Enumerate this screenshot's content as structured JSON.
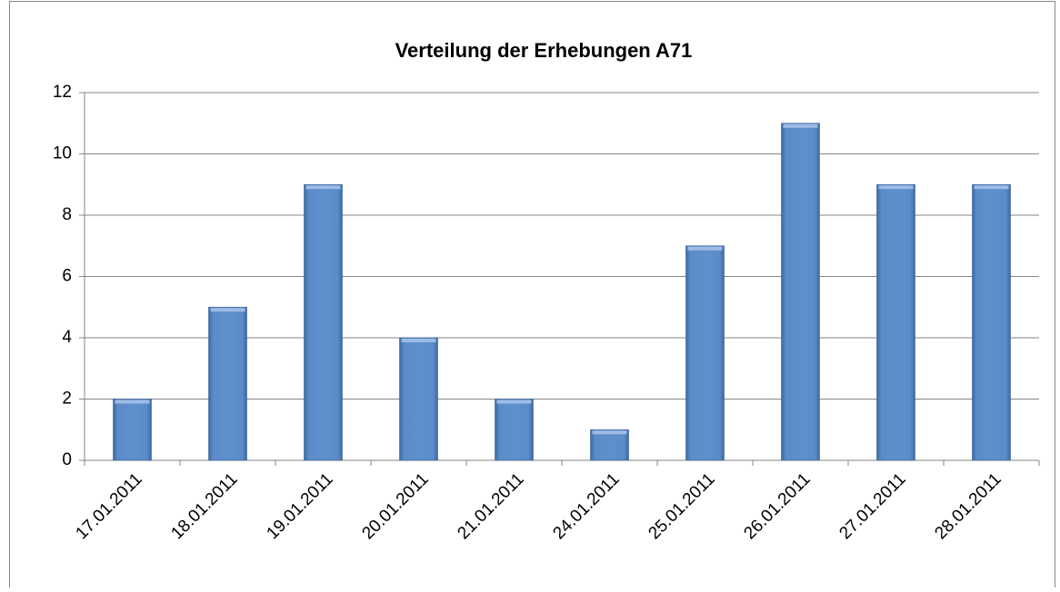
{
  "chart_data": {
    "type": "bar",
    "title": "Verteilung der Erhebungen A71",
    "categories": [
      "17.01.2011",
      "18.01.2011",
      "19.01.2011",
      "20.01.2011",
      "21.01.2011",
      "24.01.2011",
      "25.01.2011",
      "26.01.2011",
      "27.01.2011",
      "28.01.2011"
    ],
    "values": [
      2,
      5,
      9,
      4,
      2,
      1,
      7,
      11,
      9,
      9
    ],
    "color": "#4f81bd",
    "ylim": [
      0,
      12
    ],
    "yticks": [
      0,
      2,
      4,
      6,
      8,
      10,
      12
    ],
    "grid": true
  }
}
